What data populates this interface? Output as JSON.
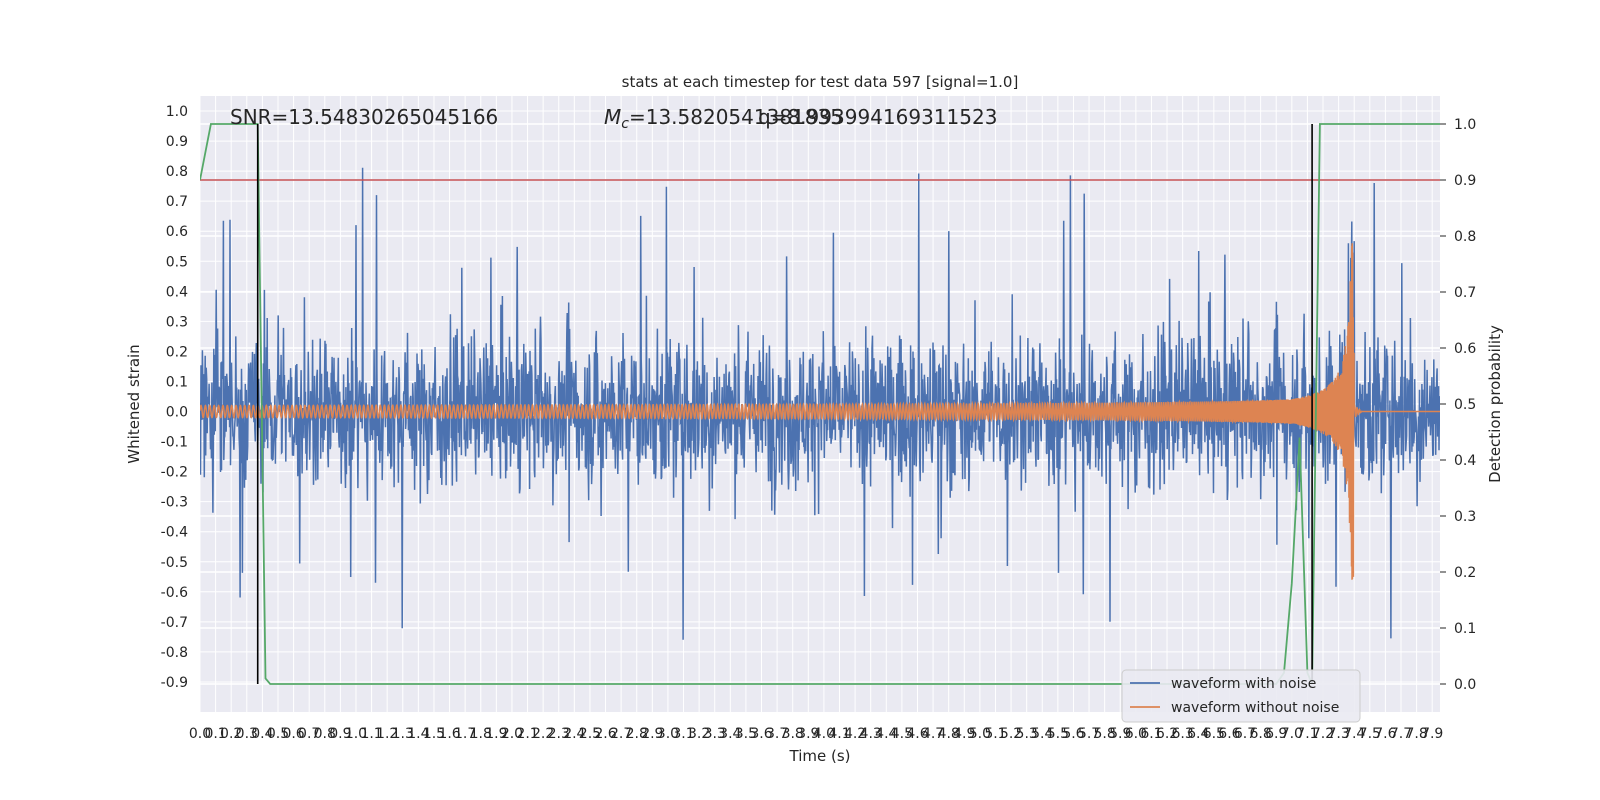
{
  "chart_data": {
    "type": "line",
    "title": "stats at each timestep for test data 597 [signal=1.0]",
    "xlabel": "Time (s)",
    "ylabel_left": "Whitened strain",
    "ylabel_right": "Detection probability",
    "xlim": [
      0.0,
      7.95
    ],
    "ylim_left": [
      -1.0,
      1.05
    ],
    "ylim_right": [
      -0.05,
      1.05
    ],
    "x_ticks": [
      "0.0",
      "0.1",
      "0.2",
      "0.3",
      "0.4",
      "0.5",
      "0.6",
      "0.7",
      "0.8",
      "0.9",
      "1.0",
      "1.1",
      "1.2",
      "1.3",
      "1.4",
      "1.5",
      "1.6",
      "1.7",
      "1.8",
      "1.9",
      "2.0",
      "2.1",
      "2.2",
      "2.3",
      "2.4",
      "2.5",
      "2.6",
      "2.7",
      "2.8",
      "2.9",
      "3.0",
      "3.1",
      "3.2",
      "3.3",
      "3.4",
      "3.5",
      "3.6",
      "3.7",
      "3.8",
      "3.9",
      "4.0",
      "4.1",
      "4.2",
      "4.3",
      "4.4",
      "4.5",
      "4.6",
      "4.7",
      "4.8",
      "4.9",
      "5.0",
      "5.1",
      "5.2",
      "5.3",
      "5.4",
      "5.5",
      "5.6",
      "5.7",
      "5.8",
      "5.9",
      "6.0",
      "6.1",
      "6.2",
      "6.3",
      "6.4",
      "6.5",
      "6.6",
      "6.7",
      "6.8",
      "6.9",
      "7.0",
      "7.1",
      "7.2",
      "7.3",
      "7.4",
      "7.5",
      "7.6",
      "7.7",
      "7.8",
      "7.9"
    ],
    "y_ticks_left": [
      "1.0",
      "0.9",
      "0.8",
      "0.7",
      "0.6",
      "0.5",
      "0.4",
      "0.3",
      "0.2",
      "0.1",
      "0.0",
      "-0.1",
      "-0.2",
      "-0.3",
      "-0.4",
      "-0.5",
      "-0.6",
      "-0.7",
      "-0.8",
      "-0.9"
    ],
    "y_ticks_right": [
      "1.0",
      "0.9",
      "0.8",
      "0.7",
      "0.6",
      "0.5",
      "0.4",
      "0.3",
      "0.2",
      "0.1",
      "0.0"
    ],
    "annotations": {
      "snr": "SNR=13.54830265045166",
      "mc": "=13.5820541381835",
      "mc_symbol": "M",
      "mc_sub": "c",
      "q": "=8.993994169311523",
      "q_overlap": "q"
    },
    "threshold_line": {
      "y_right": 0.9,
      "color": "#c44e52"
    },
    "vertical_lines": [
      0.37,
      7.13
    ],
    "series": [
      {
        "name": "waveform with noise",
        "color": "#4c72b0",
        "note": "dense noisy strain, amplitude ~0.45 with spikes"
      },
      {
        "name": "waveform without noise",
        "color": "#dd8452",
        "chirp_end": 7.4,
        "peak_amplitude": 0.56
      },
      {
        "name": "detection probability",
        "axis": "right",
        "color": "#55a868",
        "x": [
          0.0,
          0.07,
          0.1,
          0.3,
          0.37,
          0.42,
          0.45,
          0.5,
          6.9,
          6.95,
          7.0,
          7.05,
          7.1,
          7.13,
          7.18,
          7.3,
          7.95
        ],
        "y": [
          0.9,
          1.0,
          1.0,
          1.0,
          1.0,
          0.01,
          0.0,
          0.0,
          0.0,
          0.02,
          0.18,
          0.44,
          0.02,
          0.0,
          1.0,
          1.0,
          1.0
        ]
      }
    ],
    "legend": {
      "placement": "lower-right",
      "entries": [
        "waveform with noise",
        "waveform without noise"
      ]
    },
    "grid": true,
    "background": "#eaeaf2"
  }
}
